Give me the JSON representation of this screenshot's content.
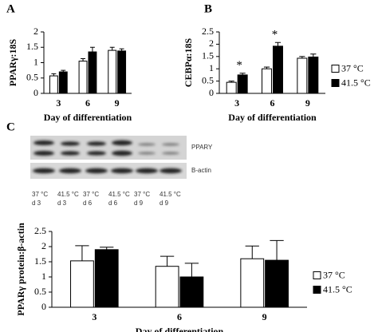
{
  "chart_data": [
    {
      "type": "bar",
      "panel": "A",
      "ylabel": "PPARγ:18S",
      "xlabel": "Day of differentiation",
      "categories": [
        "3",
        "6",
        "9"
      ],
      "series": [
        {
          "color": "#ffffff",
          "values": [
            0.57,
            1.05,
            1.4
          ],
          "errors": [
            0.07,
            0.08,
            0.1
          ]
        },
        {
          "color": "#000000",
          "values": [
            0.7,
            1.35,
            1.38
          ],
          "errors": [
            0.05,
            0.15,
            0.07
          ]
        }
      ],
      "ylim": [
        0,
        2
      ],
      "yticks": [
        0,
        0.5,
        1,
        1.5,
        2
      ]
    },
    {
      "type": "bar",
      "panel": "B",
      "ylabel": "CEBPα:18S",
      "xlabel": "Day of differentiation",
      "categories": [
        "3",
        "6",
        "9"
      ],
      "series": [
        {
          "name": "37 °C",
          "color": "#ffffff",
          "values": [
            0.45,
            1.0,
            1.43
          ],
          "errors": [
            0.05,
            0.07,
            0.07
          ]
        },
        {
          "name": "41.5 °C",
          "color": "#000000",
          "values": [
            0.75,
            1.92,
            1.48
          ],
          "errors": [
            0.07,
            0.15,
            0.12
          ]
        }
      ],
      "annotations": [
        {
          "text": "*",
          "x": "3"
        },
        {
          "text": "*",
          "x": "6"
        }
      ],
      "ylim": [
        0,
        2.5
      ],
      "yticks": [
        0,
        0.5,
        1,
        1.5,
        2,
        2.5
      ]
    },
    {
      "type": "bar",
      "panel": "C",
      "ylabel": "PPARγ protein:β-actin",
      "xlabel": "Day of differentiation",
      "categories": [
        "3",
        "6",
        "9"
      ],
      "series": [
        {
          "name": "37 °C",
          "color": "#ffffff",
          "values": [
            1.53,
            1.35,
            1.6
          ],
          "errors": [
            0.5,
            0.33,
            0.42
          ]
        },
        {
          "name": "41.5 °C",
          "color": "#000000",
          "values": [
            1.9,
            1.0,
            1.55
          ],
          "errors": [
            0.08,
            0.45,
            0.65
          ]
        }
      ],
      "ylim": [
        0,
        2.5
      ],
      "yticks": [
        0,
        0.5,
        1,
        1.5,
        2,
        2.5
      ]
    }
  ],
  "blot": {
    "bands": [
      "PPARY",
      "B-actin"
    ],
    "lanes": [
      [
        "37 °C",
        "d 3"
      ],
      [
        "41.5 °C",
        "d 3"
      ],
      [
        "37 °C",
        "d 6"
      ],
      [
        "41.5 °C",
        "d 6"
      ],
      [
        "37 °C",
        "d 9"
      ],
      [
        "41.5 °C",
        "d 9"
      ]
    ]
  }
}
